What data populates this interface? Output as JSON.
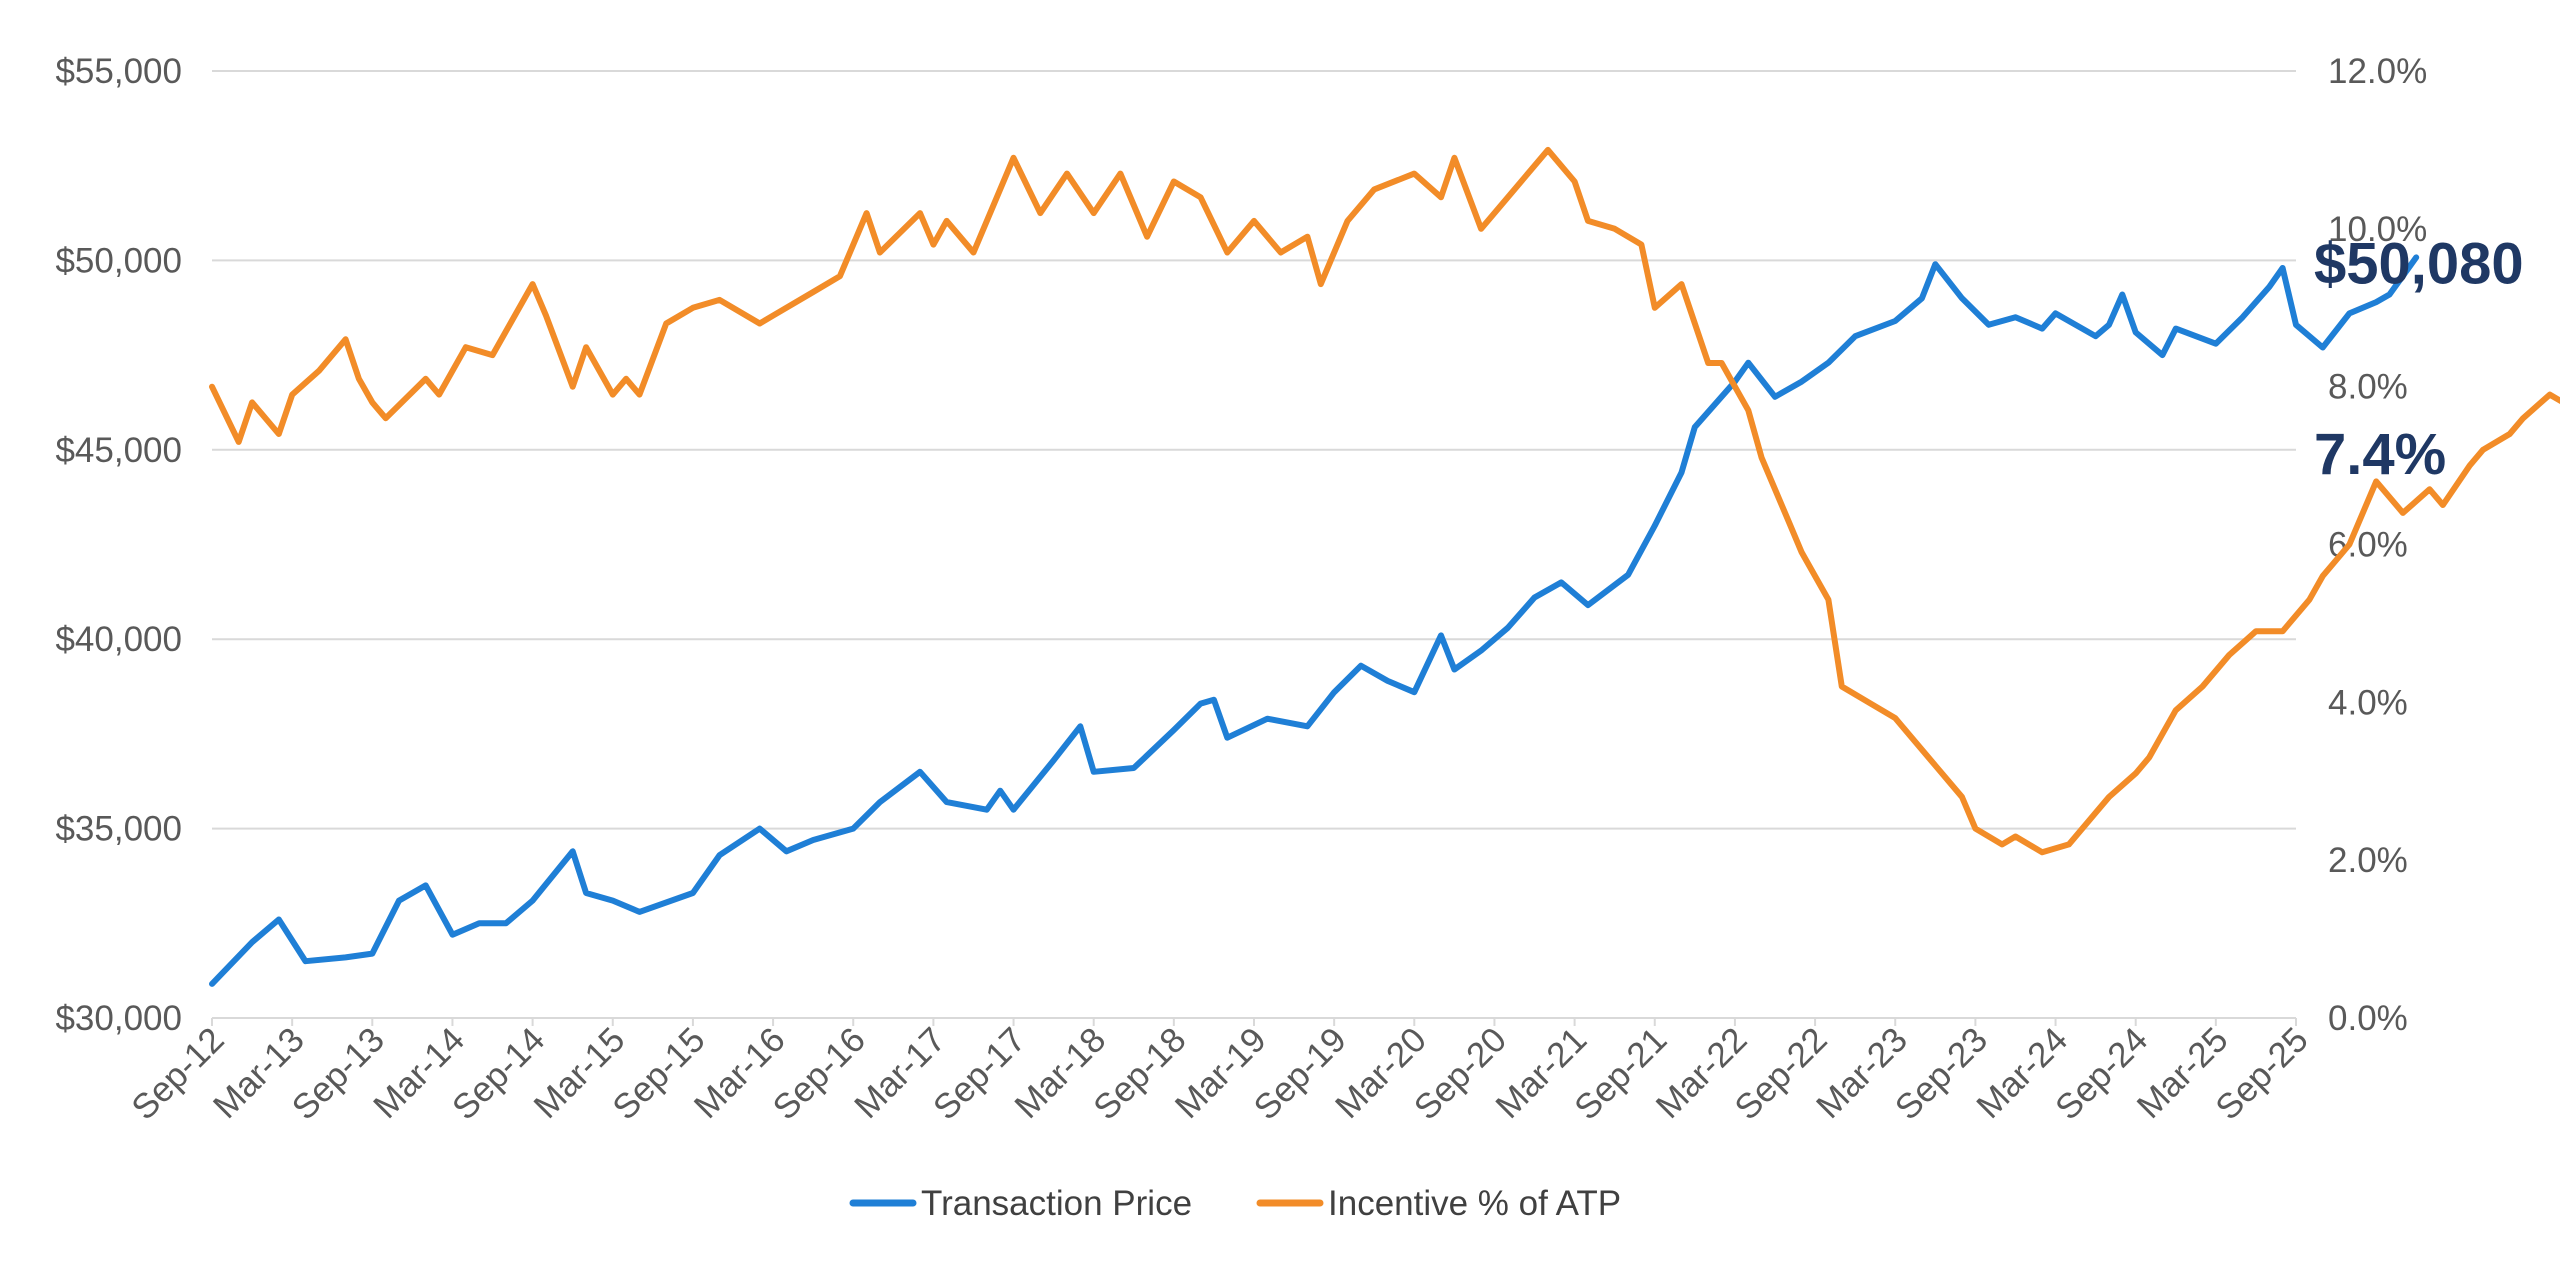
{
  "chart_data": {
    "type": "line",
    "x_tick_labels": [
      "Sep-12",
      "Mar-13",
      "Sep-13",
      "Mar-14",
      "Sep-14",
      "Mar-15",
      "Sep-15",
      "Mar-16",
      "Sep-16",
      "Mar-17",
      "Sep-17",
      "Mar-18",
      "Sep-18",
      "Mar-19",
      "Sep-19",
      "Mar-20",
      "Sep-20",
      "Mar-21",
      "Sep-21",
      "Mar-22",
      "Sep-22",
      "Mar-23",
      "Sep-23",
      "Mar-24",
      "Sep-24",
      "Mar-25",
      "Sep-25"
    ],
    "x_range": [
      "Sep-12",
      "Sep-25"
    ],
    "y_left": {
      "ylim": [
        30000,
        55000
      ],
      "tick_labels": [
        "$30,000",
        "$35,000",
        "$40,000",
        "$45,000",
        "$50,000",
        "$55,000"
      ],
      "tick_values": [
        30000,
        35000,
        40000,
        45000,
        50000,
        55000
      ]
    },
    "y_right": {
      "ylim": [
        0,
        12
      ],
      "tick_labels": [
        "0.0%",
        "2.0%",
        "4.0%",
        "6.0%",
        "8.0%",
        "10.0%",
        "12.0%"
      ],
      "tick_values": [
        0,
        2,
        4,
        6,
        8,
        10,
        12
      ]
    },
    "grid": "horizontal",
    "legend_placement": "bottom",
    "series": [
      {
        "name": "Transaction Price",
        "axis": "left",
        "color": "#1f7fd6",
        "unit": "USD",
        "points": [
          {
            "t": "Sep-12",
            "v": 30900
          },
          {
            "t": "Dec-12",
            "v": 32000
          },
          {
            "t": "Feb-13",
            "v": 32600
          },
          {
            "t": "Apr-13",
            "v": 31500
          },
          {
            "t": "Jul-13",
            "v": 31600
          },
          {
            "t": "Sep-13",
            "v": 31700
          },
          {
            "t": "Nov-13",
            "v": 33100
          },
          {
            "t": "Jan-14",
            "v": 33500
          },
          {
            "t": "Mar-14",
            "v": 32200
          },
          {
            "t": "May-14",
            "v": 32500
          },
          {
            "t": "Jul-14",
            "v": 32500
          },
          {
            "t": "Sep-14",
            "v": 33100
          },
          {
            "t": "Dec-14",
            "v": 34400
          },
          {
            "t": "Jan-15",
            "v": 33300
          },
          {
            "t": "Mar-15",
            "v": 33100
          },
          {
            "t": "May-15",
            "v": 32800
          },
          {
            "t": "Sep-15",
            "v": 33300
          },
          {
            "t": "Nov-15",
            "v": 34300
          },
          {
            "t": "Feb-16",
            "v": 35000
          },
          {
            "t": "Apr-16",
            "v": 34400
          },
          {
            "t": "Jun-16",
            "v": 34700
          },
          {
            "t": "Sep-16",
            "v": 35000
          },
          {
            "t": "Nov-16",
            "v": 35700
          },
          {
            "t": "Feb-17",
            "v": 36500
          },
          {
            "t": "Apr-17",
            "v": 35700
          },
          {
            "t": "Jul-17",
            "v": 35500
          },
          {
            "t": "Aug-17",
            "v": 36000
          },
          {
            "t": "Sep-17",
            "v": 35500
          },
          {
            "t": "Dec-17",
            "v": 36800
          },
          {
            "t": "Feb-18",
            "v": 37700
          },
          {
            "t": "Mar-18",
            "v": 36500
          },
          {
            "t": "Jun-18",
            "v": 36600
          },
          {
            "t": "Sep-18",
            "v": 37600
          },
          {
            "t": "Nov-18",
            "v": 38300
          },
          {
            "t": "Dec-18",
            "v": 38400
          },
          {
            "t": "Jan-19",
            "v": 37400
          },
          {
            "t": "Apr-19",
            "v": 37900
          },
          {
            "t": "Jul-19",
            "v": 37700
          },
          {
            "t": "Sep-19",
            "v": 38600
          },
          {
            "t": "Nov-19",
            "v": 39300
          },
          {
            "t": "Jan-20",
            "v": 38900
          },
          {
            "t": "Mar-20",
            "v": 38600
          },
          {
            "t": "May-20",
            "v": 40100
          },
          {
            "t": "Jun-20",
            "v": 39200
          },
          {
            "t": "Aug-20",
            "v": 39700
          },
          {
            "t": "Oct-20",
            "v": 40300
          },
          {
            "t": "Dec-20",
            "v": 41100
          },
          {
            "t": "Feb-21",
            "v": 41500
          },
          {
            "t": "Apr-21",
            "v": 40900
          },
          {
            "t": "Jul-21",
            "v": 41700
          },
          {
            "t": "Sep-21",
            "v": 43000
          },
          {
            "t": "Nov-21",
            "v": 44400
          },
          {
            "t": "Dec-21",
            "v": 45600
          },
          {
            "t": "Mar-22",
            "v": 46800
          },
          {
            "t": "Apr-22",
            "v": 47300
          },
          {
            "t": "Jun-22",
            "v": 46400
          },
          {
            "t": "Aug-22",
            "v": 46800
          },
          {
            "t": "Oct-22",
            "v": 47300
          },
          {
            "t": "Dec-22",
            "v": 48000
          },
          {
            "t": "Mar-23",
            "v": 48400
          },
          {
            "t": "May-23",
            "v": 49000
          },
          {
            "t": "Jun-23",
            "v": 49900
          },
          {
            "t": "Aug-23",
            "v": 49000
          },
          {
            "t": "Oct-23",
            "v": 48300
          },
          {
            "t": "Dec-23",
            "v": 48500
          },
          {
            "t": "Feb-24",
            "v": 48200
          },
          {
            "t": "Mar-24",
            "v": 48600
          },
          {
            "t": "Jun-24",
            "v": 48000
          },
          {
            "t": "Jul-24",
            "v": 48300
          },
          {
            "t": "Aug-24",
            "v": 49100
          },
          {
            "t": "Sep-24",
            "v": 48100
          },
          {
            "t": "Nov-24",
            "v": 47500
          },
          {
            "t": "Dec-24",
            "v": 48200
          },
          {
            "t": "Mar-25",
            "v": 47800
          },
          {
            "t": "May-25",
            "v": 48500
          },
          {
            "t": "Jul-25",
            "v": 49300
          },
          {
            "t": "Aug-25",
            "v": 49800
          },
          {
            "t": "Sep-25",
            "v": 48300
          },
          {
            "t": "Nov-25",
            "v": 47700
          },
          {
            "t": "Jan-26",
            "v": 48600
          },
          {
            "t": "Mar-26",
            "v": 48900
          },
          {
            "t": "Apr-26",
            "v": 49100
          },
          {
            "t": "Jun-26",
            "v": 50080
          }
        ]
      },
      {
        "name": "Incentive % of ATP",
        "axis": "right",
        "color": "#f28c28",
        "unit": "%",
        "points": [
          {
            "t": "Sep-12",
            "v": 8.0
          },
          {
            "t": "Nov-12",
            "v": 7.3
          },
          {
            "t": "Dec-12",
            "v": 7.8
          },
          {
            "t": "Feb-13",
            "v": 7.4
          },
          {
            "t": "Mar-13",
            "v": 7.9
          },
          {
            "t": "May-13",
            "v": 8.2
          },
          {
            "t": "Jul-13",
            "v": 8.6
          },
          {
            "t": "Aug-13",
            "v": 8.1
          },
          {
            "t": "Sep-13",
            "v": 7.8
          },
          {
            "t": "Oct-13",
            "v": 7.6
          },
          {
            "t": "Jan-14",
            "v": 8.1
          },
          {
            "t": "Feb-14",
            "v": 7.9
          },
          {
            "t": "Apr-14",
            "v": 8.5
          },
          {
            "t": "Jun-14",
            "v": 8.4
          },
          {
            "t": "Sep-14",
            "v": 9.3
          },
          {
            "t": "Oct-14",
            "v": 8.9
          },
          {
            "t": "Dec-14",
            "v": 8.0
          },
          {
            "t": "Jan-15",
            "v": 8.5
          },
          {
            "t": "Mar-15",
            "v": 7.9
          },
          {
            "t": "Apr-15",
            "v": 8.1
          },
          {
            "t": "May-15",
            "v": 7.9
          },
          {
            "t": "Jul-15",
            "v": 8.8
          },
          {
            "t": "Sep-15",
            "v": 9.0
          },
          {
            "t": "Nov-15",
            "v": 9.1
          },
          {
            "t": "Feb-16",
            "v": 8.8
          },
          {
            "t": "Mar-16",
            "v": 8.9
          },
          {
            "t": "Jun-16",
            "v": 9.2
          },
          {
            "t": "Aug-16",
            "v": 9.4
          },
          {
            "t": "Oct-16",
            "v": 10.2
          },
          {
            "t": "Nov-16",
            "v": 9.7
          },
          {
            "t": "Feb-17",
            "v": 10.2
          },
          {
            "t": "Mar-17",
            "v": 9.8
          },
          {
            "t": "Apr-17",
            "v": 10.1
          },
          {
            "t": "Jun-17",
            "v": 9.7
          },
          {
            "t": "Sep-17",
            "v": 10.9
          },
          {
            "t": "Nov-17",
            "v": 10.2
          },
          {
            "t": "Jan-18",
            "v": 10.7
          },
          {
            "t": "Mar-18",
            "v": 10.2
          },
          {
            "t": "May-18",
            "v": 10.7
          },
          {
            "t": "Jul-18",
            "v": 9.9
          },
          {
            "t": "Sep-18",
            "v": 10.6
          },
          {
            "t": "Nov-18",
            "v": 10.4
          },
          {
            "t": "Jan-19",
            "v": 9.7
          },
          {
            "t": "Mar-19",
            "v": 10.1
          },
          {
            "t": "May-19",
            "v": 9.7
          },
          {
            "t": "Jul-19",
            "v": 9.9
          },
          {
            "t": "Aug-19",
            "v": 9.3
          },
          {
            "t": "Oct-19",
            "v": 10.1
          },
          {
            "t": "Dec-19",
            "v": 10.5
          },
          {
            "t": "Mar-20",
            "v": 10.7
          },
          {
            "t": "May-20",
            "v": 10.4
          },
          {
            "t": "Jun-20",
            "v": 10.9
          },
          {
            "t": "Aug-20",
            "v": 10.0
          },
          {
            "t": "Oct-20",
            "v": 10.4
          },
          {
            "t": "Jan-21",
            "v": 11.0
          },
          {
            "t": "Mar-21",
            "v": 10.6
          },
          {
            "t": "Apr-21",
            "v": 10.1
          },
          {
            "t": "Jun-21",
            "v": 10.0
          },
          {
            "t": "Aug-21",
            "v": 9.8
          },
          {
            "t": "Sep-21",
            "v": 9.0
          },
          {
            "t": "Nov-21",
            "v": 9.3
          },
          {
            "t": "Jan-22",
            "v": 8.3
          },
          {
            "t": "Feb-22",
            "v": 8.3
          },
          {
            "t": "Apr-22",
            "v": 7.7
          },
          {
            "t": "May-22",
            "v": 7.1
          },
          {
            "t": "Jul-22",
            "v": 6.3
          },
          {
            "t": "Aug-22",
            "v": 5.9
          },
          {
            "t": "Oct-22",
            "v": 5.3
          },
          {
            "t": "Nov-22",
            "v": 4.2
          },
          {
            "t": "Jan-23",
            "v": 4.0
          },
          {
            "t": "Mar-23",
            "v": 3.8
          },
          {
            "t": "Apr-23",
            "v": 3.6
          },
          {
            "t": "Jun-23",
            "v": 3.2
          },
          {
            "t": "Aug-23",
            "v": 2.8
          },
          {
            "t": "Sep-23",
            "v": 2.4
          },
          {
            "t": "Nov-23",
            "v": 2.2
          },
          {
            "t": "Dec-23",
            "v": 2.3
          },
          {
            "t": "Feb-24",
            "v": 2.1
          },
          {
            "t": "Apr-24",
            "v": 2.2
          },
          {
            "t": "Jun-24",
            "v": 2.6
          },
          {
            "t": "Jul-24",
            "v": 2.8
          },
          {
            "t": "Sep-24",
            "v": 3.1
          },
          {
            "t": "Oct-24",
            "v": 3.3
          },
          {
            "t": "Dec-24",
            "v": 3.9
          },
          {
            "t": "Feb-25",
            "v": 4.2
          },
          {
            "t": "Apr-25",
            "v": 4.6
          },
          {
            "t": "Jun-25",
            "v": 4.9
          },
          {
            "t": "Aug-25",
            "v": 4.9
          },
          {
            "t": "Oct-25",
            "v": 5.3
          },
          {
            "t": "Nov-25",
            "v": 5.6
          },
          {
            "t": "Jan-26",
            "v": 6.0
          },
          {
            "t": "Mar-26",
            "v": 6.8
          },
          {
            "t": "May-26",
            "v": 6.4
          },
          {
            "t": "Jul-26",
            "v": 6.7
          },
          {
            "t": "Aug-26",
            "v": 6.5
          },
          {
            "t": "Oct-26",
            "v": 7.0
          },
          {
            "t": "Nov-26",
            "v": 7.2
          },
          {
            "t": "Jan-27",
            "v": 7.4
          },
          {
            "t": "Feb-27",
            "v": 7.6
          },
          {
            "t": "Apr-27",
            "v": 7.9
          },
          {
            "t": "May-27",
            "v": 7.8
          },
          {
            "t": "Jun-27",
            "v": 7.0
          },
          {
            "t": "Aug-27",
            "v": 7.0
          },
          {
            "t": "Oct-27",
            "v": 6.8
          },
          {
            "t": "Jan-28",
            "v": 6.8
          },
          {
            "t": "Mar-28",
            "v": 7.1
          },
          {
            "t": "May-28",
            "v": 7.3
          },
          {
            "t": "Jun-28",
            "v": 7.4
          }
        ]
      }
    ],
    "callouts": [
      {
        "text": "$50,080",
        "series": "Transaction Price"
      },
      {
        "text": "7.4%",
        "series": "Incentive % of ATP"
      }
    ]
  },
  "legend": {
    "items": [
      {
        "label": "Transaction Price",
        "color": "#1f7fd6"
      },
      {
        "label": "Incentive % of ATP",
        "color": "#f28c28"
      }
    ]
  },
  "callout_color": "#1f3864"
}
